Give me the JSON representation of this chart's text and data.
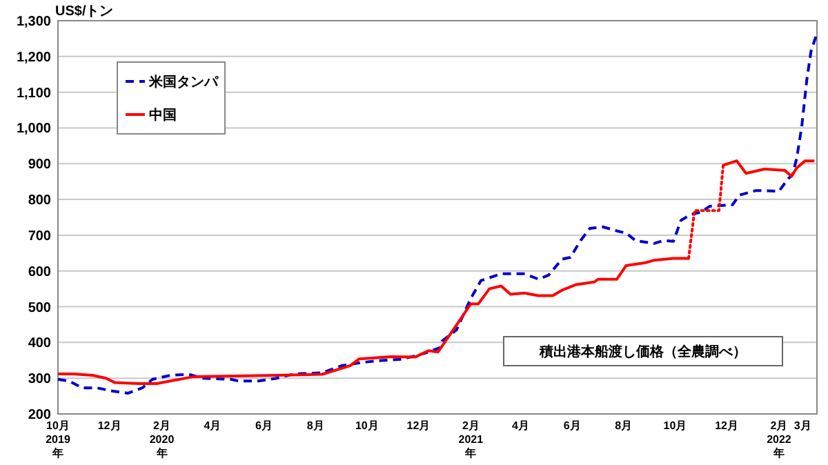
{
  "chart_data": {
    "type": "line",
    "ylabel": "US$/トン",
    "xlim": [
      "2019-10-01",
      "2022-03-18"
    ],
    "xticks": [
      {
        "value": "2019-10-01",
        "label": "10月\n2019\n年"
      },
      {
        "value": "2019-12-01",
        "label": "12月"
      },
      {
        "value": "2020-02-01",
        "label": "2月\n2020\n年"
      },
      {
        "value": "2020-04-01",
        "label": "4月"
      },
      {
        "value": "2020-06-01",
        "label": "6月"
      },
      {
        "value": "2020-08-01",
        "label": "8月"
      },
      {
        "value": "2020-10-01",
        "label": "10月"
      },
      {
        "value": "2020-12-01",
        "label": "12月"
      },
      {
        "value": "2021-02-01",
        "label": "2月\n2021\n年"
      },
      {
        "value": "2021-04-01",
        "label": "4月"
      },
      {
        "value": "2021-06-01",
        "label": "6月"
      },
      {
        "value": "2021-08-01",
        "label": "8月"
      },
      {
        "value": "2021-10-01",
        "label": "10月"
      },
      {
        "value": "2021-12-01",
        "label": "12月"
      },
      {
        "value": "2022-02-01",
        "label": "2月\n2022\n年"
      },
      {
        "value": "2022-03-01",
        "label": "3月"
      }
    ],
    "ylim": [
      200,
      1300
    ],
    "yticks": [
      {
        "value": 200,
        "label": "200"
      },
      {
        "value": 300,
        "label": "300"
      },
      {
        "value": 400,
        "label": "400"
      },
      {
        "value": 500,
        "label": "500"
      },
      {
        "value": 600,
        "label": "600"
      },
      {
        "value": 700,
        "label": "700"
      },
      {
        "value": 800,
        "label": "800"
      },
      {
        "value": 900,
        "label": "900"
      },
      {
        "value": 1000,
        "label": "1,000"
      },
      {
        "value": 1100,
        "label": "1,100"
      },
      {
        "value": 1200,
        "label": "1,200"
      },
      {
        "value": 1300,
        "label": "1,300"
      }
    ],
    "grid": "y",
    "legend": "top left",
    "annotations": [
      "積出港本船渡し価格（全農調べ）"
    ],
    "series": [
      {
        "name": "米国タンパ",
        "color": "#0000cc",
        "line_style": "dashed",
        "x": [
          "2019-10-01",
          "2019-10-14",
          "2019-10-30",
          "2019-11-16",
          "2019-12-02",
          "2019-12-23",
          "2020-01-09",
          "2020-01-21",
          "2020-02-11",
          "2020-03-04",
          "2020-03-20",
          "2020-04-23",
          "2020-05-02",
          "2020-05-25",
          "2020-06-16",
          "2020-07-07",
          "2020-08-09",
          "2020-09-01",
          "2020-09-22",
          "2020-10-14",
          "2020-11-11",
          "2020-12-09",
          "2020-12-26",
          "2020-12-29",
          "2021-01-15",
          "2021-02-01",
          "2021-02-13",
          "2021-02-23",
          "2021-03-09",
          "2021-04-06",
          "2021-04-22",
          "2021-05-04",
          "2021-05-20",
          "2021-05-30",
          "2021-06-11",
          "2021-06-22",
          "2021-07-08",
          "2021-07-24",
          "2021-08-04",
          "2021-08-15",
          "2021-09-06",
          "2021-09-17",
          "2021-09-29",
          "2021-10-08",
          "2021-10-20",
          "2021-11-01",
          "2021-11-11",
          "2021-12-08",
          "2021-12-16",
          "2022-01-05",
          "2022-02-01",
          "2022-02-12",
          "2022-02-17",
          "2022-02-22",
          "2022-02-28",
          "2022-03-06",
          "2022-03-11",
          "2022-03-18"
        ],
        "values": [
          297,
          292,
          273,
          273,
          265,
          258,
          273,
          297,
          308,
          311,
          300,
          297,
          292,
          292,
          300,
          312,
          315,
          335,
          343,
          349,
          353,
          370,
          385,
          404,
          435,
          523,
          573,
          581,
          592,
          592,
          577,
          588,
          633,
          638,
          685,
          719,
          723,
          712,
          706,
          685,
          677,
          685,
          683,
          742,
          758,
          765,
          781,
          785,
          812,
          825,
          823,
          858,
          869,
          915,
          1004,
          1135,
          1215,
          1265
        ]
      },
      {
        "name": "中国",
        "color": "#ff0000",
        "line_style": "solid",
        "x": [
          "2019-10-01",
          "2019-10-19",
          "2019-11-11",
          "2019-11-27",
          "2019-12-07",
          "2020-01-05",
          "2020-01-26",
          "2020-02-11",
          "2020-03-09",
          "2020-06-16",
          "2020-08-09",
          "2020-09-11",
          "2020-09-22",
          "2020-10-30",
          "2020-11-27",
          "2020-12-13",
          "2020-12-24",
          "2020-12-29",
          "2021-01-19",
          "2021-02-01",
          "2021-02-10",
          "2021-02-23",
          "2021-03-09",
          "2021-03-20",
          "2021-04-06",
          "2021-04-22",
          "2021-05-09",
          "2021-05-20",
          "2021-06-06",
          "2021-06-27",
          "2021-07-02",
          "2021-07-24",
          "2021-08-04",
          "2021-08-27",
          "2021-09-06",
          "2021-09-29",
          "2021-10-17",
          "2021-11-01",
          "2021-11-27",
          "2021-12-13",
          "2021-12-24",
          "2022-01-15",
          "2022-02-08",
          "2022-02-16",
          "2022-02-22",
          "2022-03-04",
          "2022-03-15"
        ],
        "values": [
          312,
          312,
          308,
          300,
          288,
          285,
          285,
          292,
          304,
          308,
          311,
          335,
          354,
          360,
          359,
          377,
          373,
          390,
          462,
          508,
          508,
          550,
          558,
          535,
          538,
          531,
          531,
          546,
          562,
          569,
          577,
          577,
          615,
          623,
          630,
          635,
          635,
          null,
          896,
          908,
          873,
          885,
          881,
          865,
          888,
          908,
          908
        ]
      },
      {
        "color": "#ff0000",
        "line_style": "dotted",
        "x": [
          "2021-10-17",
          "2021-10-24",
          "2021-11-22",
          "2021-11-27"
        ],
        "values": [
          635,
          769,
          769,
          896
        ]
      }
    ]
  }
}
